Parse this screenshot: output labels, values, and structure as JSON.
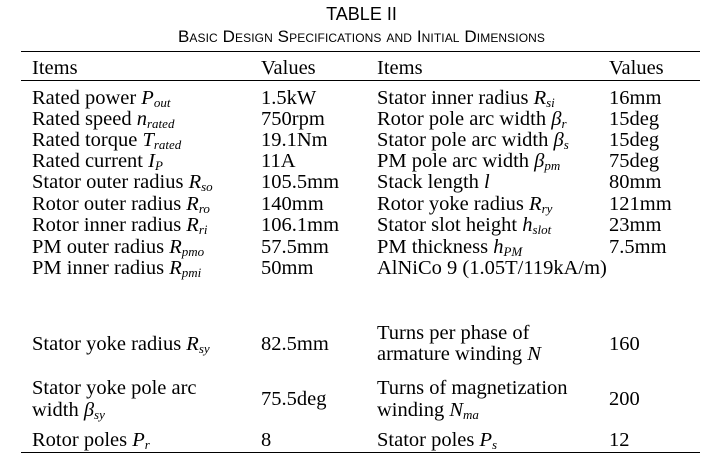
{
  "table": {
    "title": "TABLE II",
    "caption": "Basic Design Specifications and Initial Dimensions",
    "headers": [
      "Items",
      "Values",
      "Items",
      "Values"
    ],
    "rows": [
      {
        "item1": {
          "text": "Rated power ",
          "sym": "P",
          "sub": "out"
        },
        "value1": "1.5kW",
        "item2": {
          "text": "Stator inner radius ",
          "sym": "R",
          "sub": "si"
        },
        "value2": "16mm"
      },
      {
        "item1": {
          "text": "Rated speed ",
          "sym": "n",
          "sub": "rated"
        },
        "value1": "750rpm",
        "item2": {
          "text": "Rotor pole arc width ",
          "sym": "β",
          "sub": "r"
        },
        "value2": "15deg"
      },
      {
        "item1": {
          "text": "Rated torque ",
          "sym": "T",
          "sub": "rated"
        },
        "value1": "19.1Nm",
        "item2": {
          "text": "Stator pole arc width ",
          "sym": "β",
          "sub": "s"
        },
        "value2": "15deg"
      },
      {
        "item1": {
          "text": "Rated current ",
          "sym": "I",
          "sub": "P"
        },
        "value1": "11A",
        "item2": {
          "text": "PM pole arc width ",
          "sym": "β",
          "sub": "pm"
        },
        "value2": "75deg"
      },
      {
        "item1": {
          "text": "Stator outer radius ",
          "sym": "R",
          "sub": "so"
        },
        "value1": "105.5mm",
        "item2": {
          "text": "Stack length ",
          "sym": "l",
          "sub": ""
        },
        "value2": "80mm"
      },
      {
        "item1": {
          "text": "Rotor outer radius ",
          "sym": "R",
          "sub": "ro"
        },
        "value1": "140mm",
        "item2": {
          "text": "Rotor yoke radius ",
          "sym": "R",
          "sub": "ry"
        },
        "value2": "121mm"
      },
      {
        "item1": {
          "text": "Rotor inner radius ",
          "sym": "R",
          "sub": "ri"
        },
        "value1": "106.1mm",
        "item2": {
          "text": "Stator slot height ",
          "sym": "h",
          "sub": "slot"
        },
        "value2": "23mm"
      },
      {
        "item1": {
          "text": "PM outer radius ",
          "sym": "R",
          "sub": "pmo"
        },
        "value1": "57.5mm",
        "item2": {
          "text": "PM thickness ",
          "sym": "h",
          "sub": "PM"
        },
        "value2": "7.5mm"
      },
      {
        "item1": {
          "text": "PM inner radius ",
          "sym": "R",
          "sub": "pmi"
        },
        "value1": "50mm",
        "item2": {
          "text": "AlNiCo 9 (1.05T/119kA/m)",
          "sym": "",
          "sub": ""
        },
        "value2": ""
      },
      {
        "item1": {
          "text": "Stator  yoke radius ",
          "sym": "R",
          "sub": "sy"
        },
        "value1": "82.5mm",
        "item2": {
          "line1": "Turns   per   phase   of",
          "line2_text": "armature winding ",
          "sym": "N",
          "sub": ""
        },
        "value2": "160"
      },
      {
        "item1": {
          "line1": "Stator yoke pole arc",
          "line2_text": "width ",
          "sym": "β",
          "sub": "sy"
        },
        "value1": "75.5deg",
        "item2": {
          "line1": "Turns of magnetization",
          "line2_text": " winding ",
          "sym": "N",
          "sub": "ma"
        },
        "value2": "200"
      },
      {
        "item1": {
          "text": "Rotor poles ",
          "sym": "P",
          "sub": "r"
        },
        "value1": "8",
        "item2": {
          "text": "Stator poles ",
          "sym": "P",
          "sub": "s"
        },
        "value2": "12"
      }
    ]
  }
}
